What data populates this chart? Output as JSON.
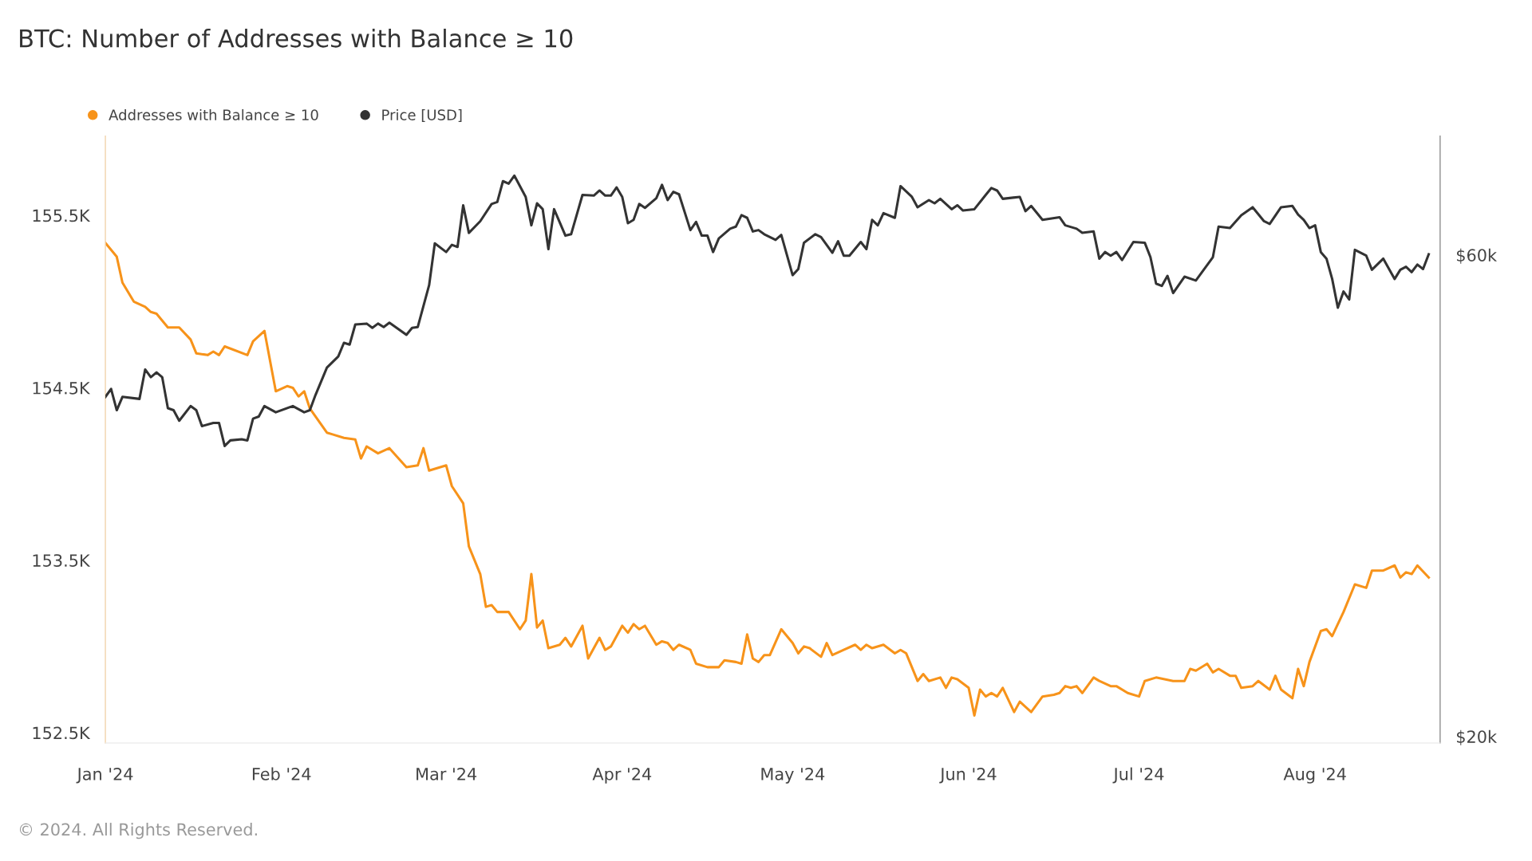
{
  "chart_data": {
    "type": "line",
    "title": "BTC: Number of Addresses with Balance ≥ 10",
    "annotations": [
      "© 2024. All Rights Reserved."
    ],
    "legend": "top left",
    "grid": false,
    "log": "y2",
    "line_style": "solid",
    "xlim": [
      "2024-01-01",
      "2024-08-23"
    ],
    "xticks": [
      {
        "value": "2024-01-01",
        "label": "Jan '24"
      },
      {
        "value": "2024-02-01",
        "label": "Feb '24"
      },
      {
        "value": "2024-03-01",
        "label": "Mar '24"
      },
      {
        "value": "2024-04-01",
        "label": "Apr '24"
      },
      {
        "value": "2024-05-01",
        "label": "May '24"
      },
      {
        "value": "2024-06-01",
        "label": "Jun '24"
      },
      {
        "value": "2024-07-01",
        "label": "Jul '24"
      },
      {
        "value": "2024-08-01",
        "label": "Aug '24"
      }
    ],
    "ylim": [
      152440,
      155960
    ],
    "yticks": [
      {
        "value": 152500,
        "label": "152.5K"
      },
      {
        "value": 153500,
        "label": "153.5K"
      },
      {
        "value": 154500,
        "label": "154.5K"
      },
      {
        "value": 155500,
        "label": "155.5K"
      }
    ],
    "y2lim": [
      19700,
      78700
    ],
    "y2ticks": [
      {
        "value": 20000,
        "label": "$20k"
      },
      {
        "value": 60000,
        "label": "$60k"
      }
    ],
    "series": [
      {
        "name": "Addresses with Balance ≥ 10",
        "color": "#f7931a",
        "axis": "y",
        "x": [
          "2024-01-01",
          "2024-01-03",
          "2024-01-04",
          "2024-01-06",
          "2024-01-08",
          "2024-01-09",
          "2024-01-10",
          "2024-01-12",
          "2024-01-14",
          "2024-01-16",
          "2024-01-17",
          "2024-01-19",
          "2024-01-20",
          "2024-01-21",
          "2024-01-22",
          "2024-01-26",
          "2024-01-27",
          "2024-01-29",
          "2024-01-31",
          "2024-02-02",
          "2024-02-03",
          "2024-02-04",
          "2024-02-05",
          "2024-02-06",
          "2024-02-09",
          "2024-02-10",
          "2024-02-12",
          "2024-02-14",
          "2024-02-15",
          "2024-02-16",
          "2024-02-18",
          "2024-02-20",
          "2024-02-23",
          "2024-02-25",
          "2024-02-26",
          "2024-02-27",
          "2024-03-01",
          "2024-03-02",
          "2024-03-04",
          "2024-03-05",
          "2024-03-07",
          "2024-03-08",
          "2024-03-09",
          "2024-03-10",
          "2024-03-12",
          "2024-03-14",
          "2024-03-15",
          "2024-03-16",
          "2024-03-17",
          "2024-03-18",
          "2024-03-19",
          "2024-03-21",
          "2024-03-22",
          "2024-03-23",
          "2024-03-25",
          "2024-03-26",
          "2024-03-28",
          "2024-03-29",
          "2024-03-30",
          "2024-04-01",
          "2024-04-02",
          "2024-04-03",
          "2024-04-04",
          "2024-04-05",
          "2024-04-07",
          "2024-04-08",
          "2024-04-09",
          "2024-04-10",
          "2024-04-11",
          "2024-04-13",
          "2024-04-14",
          "2024-04-16",
          "2024-04-18",
          "2024-04-19",
          "2024-04-21",
          "2024-04-22",
          "2024-04-23",
          "2024-04-24",
          "2024-04-25",
          "2024-04-26",
          "2024-04-27",
          "2024-04-29",
          "2024-05-01",
          "2024-05-02",
          "2024-05-03",
          "2024-05-04",
          "2024-05-06",
          "2024-05-07",
          "2024-05-08",
          "2024-05-10",
          "2024-05-12",
          "2024-05-13",
          "2024-05-14",
          "2024-05-15",
          "2024-05-17",
          "2024-05-19",
          "2024-05-20",
          "2024-05-21",
          "2024-05-23",
          "2024-05-24",
          "2024-05-25",
          "2024-05-27",
          "2024-05-28",
          "2024-05-29",
          "2024-05-30",
          "2024-06-01",
          "2024-06-02",
          "2024-06-03",
          "2024-06-04",
          "2024-06-05",
          "2024-06-06",
          "2024-06-07",
          "2024-06-09",
          "2024-06-10",
          "2024-06-12",
          "2024-06-14",
          "2024-06-16",
          "2024-06-17",
          "2024-06-18",
          "2024-06-19",
          "2024-06-20",
          "2024-06-21",
          "2024-06-23",
          "2024-06-24",
          "2024-06-26",
          "2024-06-27",
          "2024-06-29",
          "2024-07-01",
          "2024-07-02",
          "2024-07-04",
          "2024-07-07",
          "2024-07-09",
          "2024-07-10",
          "2024-07-11",
          "2024-07-13",
          "2024-07-14",
          "2024-07-15",
          "2024-07-17",
          "2024-07-18",
          "2024-07-19",
          "2024-07-21",
          "2024-07-22",
          "2024-07-24",
          "2024-07-25",
          "2024-07-26",
          "2024-07-28",
          "2024-07-29",
          "2024-07-30",
          "2024-07-31",
          "2024-08-02",
          "2024-08-03",
          "2024-08-04",
          "2024-08-06",
          "2024-08-08",
          "2024-08-10",
          "2024-08-11",
          "2024-08-13",
          "2024-08-15",
          "2024-08-16",
          "2024-08-17",
          "2024-08-18",
          "2024-08-19",
          "2024-08-21"
        ],
        "values": [
          155340,
          155260,
          155110,
          155000,
          154970,
          154940,
          154930,
          154850,
          154850,
          154780,
          154700,
          154690,
          154710,
          154690,
          154740,
          154690,
          154770,
          154830,
          154480,
          154510,
          154500,
          154450,
          154480,
          154380,
          154240,
          154230,
          154210,
          154200,
          154090,
          154160,
          154120,
          154150,
          154040,
          154050,
          154150,
          154020,
          154050,
          153930,
          153830,
          153580,
          153420,
          153230,
          153240,
          153200,
          153200,
          153100,
          153150,
          153420,
          153110,
          153150,
          152990,
          153010,
          153050,
          153000,
          153120,
          152930,
          153050,
          152980,
          153000,
          153120,
          153080,
          153130,
          153100,
          153120,
          153010,
          153030,
          153020,
          152980,
          153010,
          152980,
          152900,
          152880,
          152880,
          152920,
          152910,
          152900,
          153070,
          152930,
          152910,
          152950,
          152950,
          153100,
          153020,
          152960,
          153000,
          152990,
          152940,
          153020,
          152950,
          152980,
          153010,
          152980,
          153010,
          152990,
          153010,
          152960,
          152980,
          152960,
          152800,
          152840,
          152800,
          152820,
          152760,
          152820,
          152810,
          152760,
          152600,
          152750,
          152710,
          152730,
          152710,
          152760,
          152620,
          152680,
          152620,
          152710,
          152720,
          152730,
          152770,
          152760,
          152770,
          152730,
          152820,
          152800,
          152770,
          152770,
          152730,
          152710,
          152800,
          152820,
          152800,
          152800,
          152870,
          152860,
          152900,
          152850,
          152870,
          152830,
          152830,
          152760,
          152770,
          152800,
          152750,
          152830,
          152750,
          152700,
          152870,
          152770,
          152910,
          153090,
          153100,
          153060,
          153200,
          153360,
          153340,
          153440,
          153440,
          153470,
          153400,
          153430,
          153420,
          153470,
          153400
        ]
      },
      {
        "name": "Price [USD]",
        "color": "#333333",
        "axis": "y2",
        "x": [
          "2024-01-01",
          "2024-01-02",
          "2024-01-03",
          "2024-01-04",
          "2024-01-07",
          "2024-01-08",
          "2024-01-09",
          "2024-01-10",
          "2024-01-11",
          "2024-01-12",
          "2024-01-13",
          "2024-01-14",
          "2024-01-16",
          "2024-01-17",
          "2024-01-18",
          "2024-01-20",
          "2024-01-21",
          "2024-01-22",
          "2024-01-23",
          "2024-01-25",
          "2024-01-26",
          "2024-01-27",
          "2024-01-28",
          "2024-01-29",
          "2024-01-31",
          "2024-02-03",
          "2024-02-05",
          "2024-02-06",
          "2024-02-07",
          "2024-02-09",
          "2024-02-11",
          "2024-02-12",
          "2024-02-13",
          "2024-02-14",
          "2024-02-16",
          "2024-02-17",
          "2024-02-18",
          "2024-02-19",
          "2024-02-20",
          "2024-02-23",
          "2024-02-24",
          "2024-02-25",
          "2024-02-27",
          "2024-02-28",
          "2024-03-01",
          "2024-03-02",
          "2024-03-03",
          "2024-03-04",
          "2024-03-05",
          "2024-03-07",
          "2024-03-09",
          "2024-03-10",
          "2024-03-11",
          "2024-03-12",
          "2024-03-13",
          "2024-03-15",
          "2024-03-16",
          "2024-03-17",
          "2024-03-18",
          "2024-03-19",
          "2024-03-20",
          "2024-03-22",
          "2024-03-23",
          "2024-03-25",
          "2024-03-27",
          "2024-03-28",
          "2024-03-29",
          "2024-03-30",
          "2024-03-31",
          "2024-04-01",
          "2024-04-02",
          "2024-04-03",
          "2024-04-04",
          "2024-04-05",
          "2024-04-07",
          "2024-04-08",
          "2024-04-09",
          "2024-04-10",
          "2024-04-11",
          "2024-04-13",
          "2024-04-14",
          "2024-04-15",
          "2024-04-16",
          "2024-04-17",
          "2024-04-18",
          "2024-04-20",
          "2024-04-21",
          "2024-04-22",
          "2024-04-23",
          "2024-04-24",
          "2024-04-25",
          "2024-04-26",
          "2024-04-28",
          "2024-04-29",
          "2024-05-01",
          "2024-05-02",
          "2024-05-03",
          "2024-05-05",
          "2024-05-06",
          "2024-05-08",
          "2024-05-09",
          "2024-05-10",
          "2024-05-11",
          "2024-05-13",
          "2024-05-14",
          "2024-05-15",
          "2024-05-16",
          "2024-05-17",
          "2024-05-19",
          "2024-05-20",
          "2024-05-22",
          "2024-05-23",
          "2024-05-25",
          "2024-05-26",
          "2024-05-27",
          "2024-05-29",
          "2024-05-30",
          "2024-05-31",
          "2024-06-02",
          "2024-06-04",
          "2024-06-05",
          "2024-06-06",
          "2024-06-07",
          "2024-06-10",
          "2024-06-11",
          "2024-06-12",
          "2024-06-14",
          "2024-06-17",
          "2024-06-18",
          "2024-06-20",
          "2024-06-21",
          "2024-06-23",
          "2024-06-24",
          "2024-06-25",
          "2024-06-26",
          "2024-06-27",
          "2024-06-28",
          "2024-06-30",
          "2024-07-02",
          "2024-07-03",
          "2024-07-04",
          "2024-07-05",
          "2024-07-06",
          "2024-07-07",
          "2024-07-09",
          "2024-07-11",
          "2024-07-14",
          "2024-07-15",
          "2024-07-17",
          "2024-07-19",
          "2024-07-21",
          "2024-07-23",
          "2024-07-24",
          "2024-07-26",
          "2024-07-28",
          "2024-07-29",
          "2024-07-30",
          "2024-07-31",
          "2024-08-01",
          "2024-08-02",
          "2024-08-03",
          "2024-08-04",
          "2024-08-05",
          "2024-08-06",
          "2024-08-07",
          "2024-08-08",
          "2024-08-10",
          "2024-08-11",
          "2024-08-13",
          "2024-08-15",
          "2024-08-16",
          "2024-08-17",
          "2024-08-18",
          "2024-08-19",
          "2024-08-20",
          "2024-08-21"
        ],
        "values": [
          43400,
          44200,
          42100,
          43400,
          43200,
          46200,
          45400,
          45900,
          45400,
          42300,
          42100,
          41100,
          42500,
          42100,
          40600,
          40900,
          40900,
          38800,
          39300,
          39400,
          39300,
          41300,
          41500,
          42500,
          41900,
          42500,
          41900,
          42100,
          43600,
          46400,
          47600,
          49100,
          48900,
          51200,
          51300,
          50800,
          51300,
          50900,
          51400,
          50000,
          50800,
          50900,
          56000,
          61600,
          60400,
          61400,
          61100,
          67200,
          63100,
          64800,
          67400,
          67700,
          71000,
          70600,
          71900,
          68500,
          64200,
          67500,
          66600,
          60800,
          66600,
          62700,
          62900,
          68800,
          68700,
          69500,
          68700,
          68700,
          70000,
          68500,
          64500,
          65000,
          67400,
          66800,
          68300,
          70400,
          68000,
          69300,
          68900,
          63500,
          64700,
          62700,
          62700,
          60400,
          62300,
          63700,
          64000,
          65700,
          65300,
          63300,
          63500,
          62900,
          62100,
          62800,
          57300,
          58100,
          61700,
          62900,
          62500,
          60300,
          61900,
          59900,
          59900,
          61800,
          60800,
          65000,
          64200,
          66000,
          65300,
          70200,
          68500,
          66900,
          68000,
          67500,
          68200,
          66600,
          67200,
          66400,
          66600,
          68800,
          69900,
          69500,
          68200,
          68500,
          66300,
          67100,
          65000,
          65400,
          64200,
          63700,
          63100,
          63300,
          59500,
          60400,
          59900,
          60400,
          59300,
          61800,
          61700,
          59700,
          56200,
          55900,
          57200,
          55000,
          57100,
          56600,
          59700,
          64000,
          63800,
          65700,
          66900,
          64800,
          64400,
          66900,
          67100,
          65800,
          65000,
          63800,
          64200,
          60400,
          59500,
          56800,
          53200,
          55200,
          54200,
          60700,
          59900,
          58000,
          59500,
          56800,
          58000,
          58400,
          57700,
          58700,
          58100,
          60100
        ]
      }
    ]
  }
}
